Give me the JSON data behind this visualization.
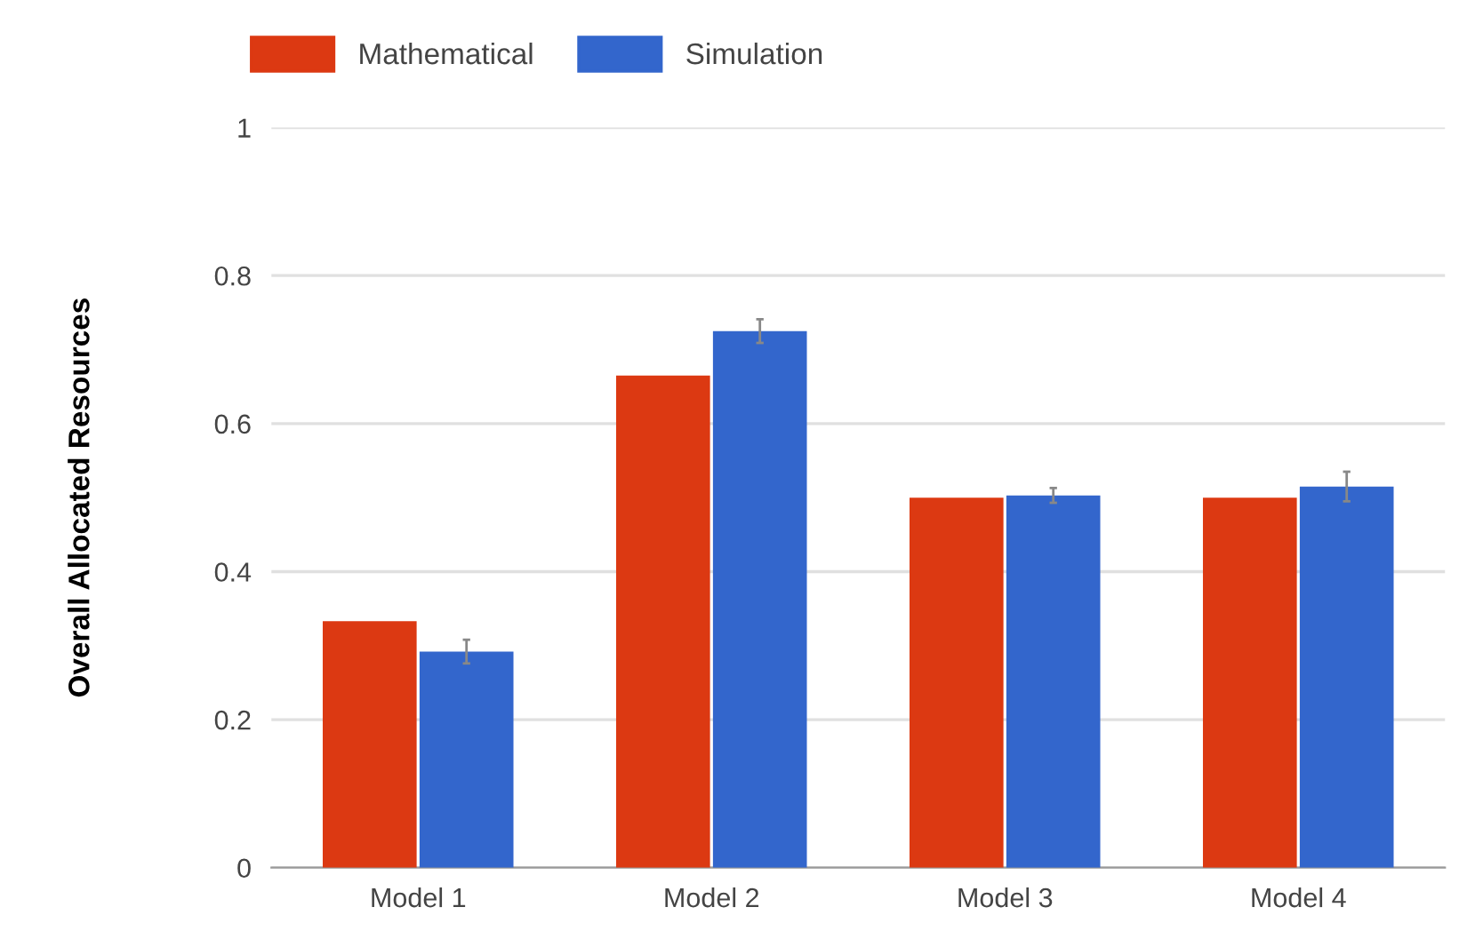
{
  "chart_data": {
    "type": "bar",
    "ylabel": "Overall Allocated Resources",
    "categories": [
      "Model 1",
      "Model 2",
      "Model 3",
      "Model 4"
    ],
    "series": [
      {
        "name": "Mathematical",
        "color": "#dc3912",
        "values": [
          0.333,
          0.665,
          0.5,
          0.5
        ]
      },
      {
        "name": "Simulation",
        "color": "#3366cc",
        "values": [
          0.292,
          0.725,
          0.503,
          0.515
        ],
        "errors": [
          0.016,
          0.016,
          0.01,
          0.02
        ]
      }
    ],
    "ylim": [
      0,
      1
    ],
    "yticks": [
      0,
      0.2,
      0.4,
      0.6,
      0.8,
      1
    ],
    "grid": "y",
    "legend": "top left"
  }
}
